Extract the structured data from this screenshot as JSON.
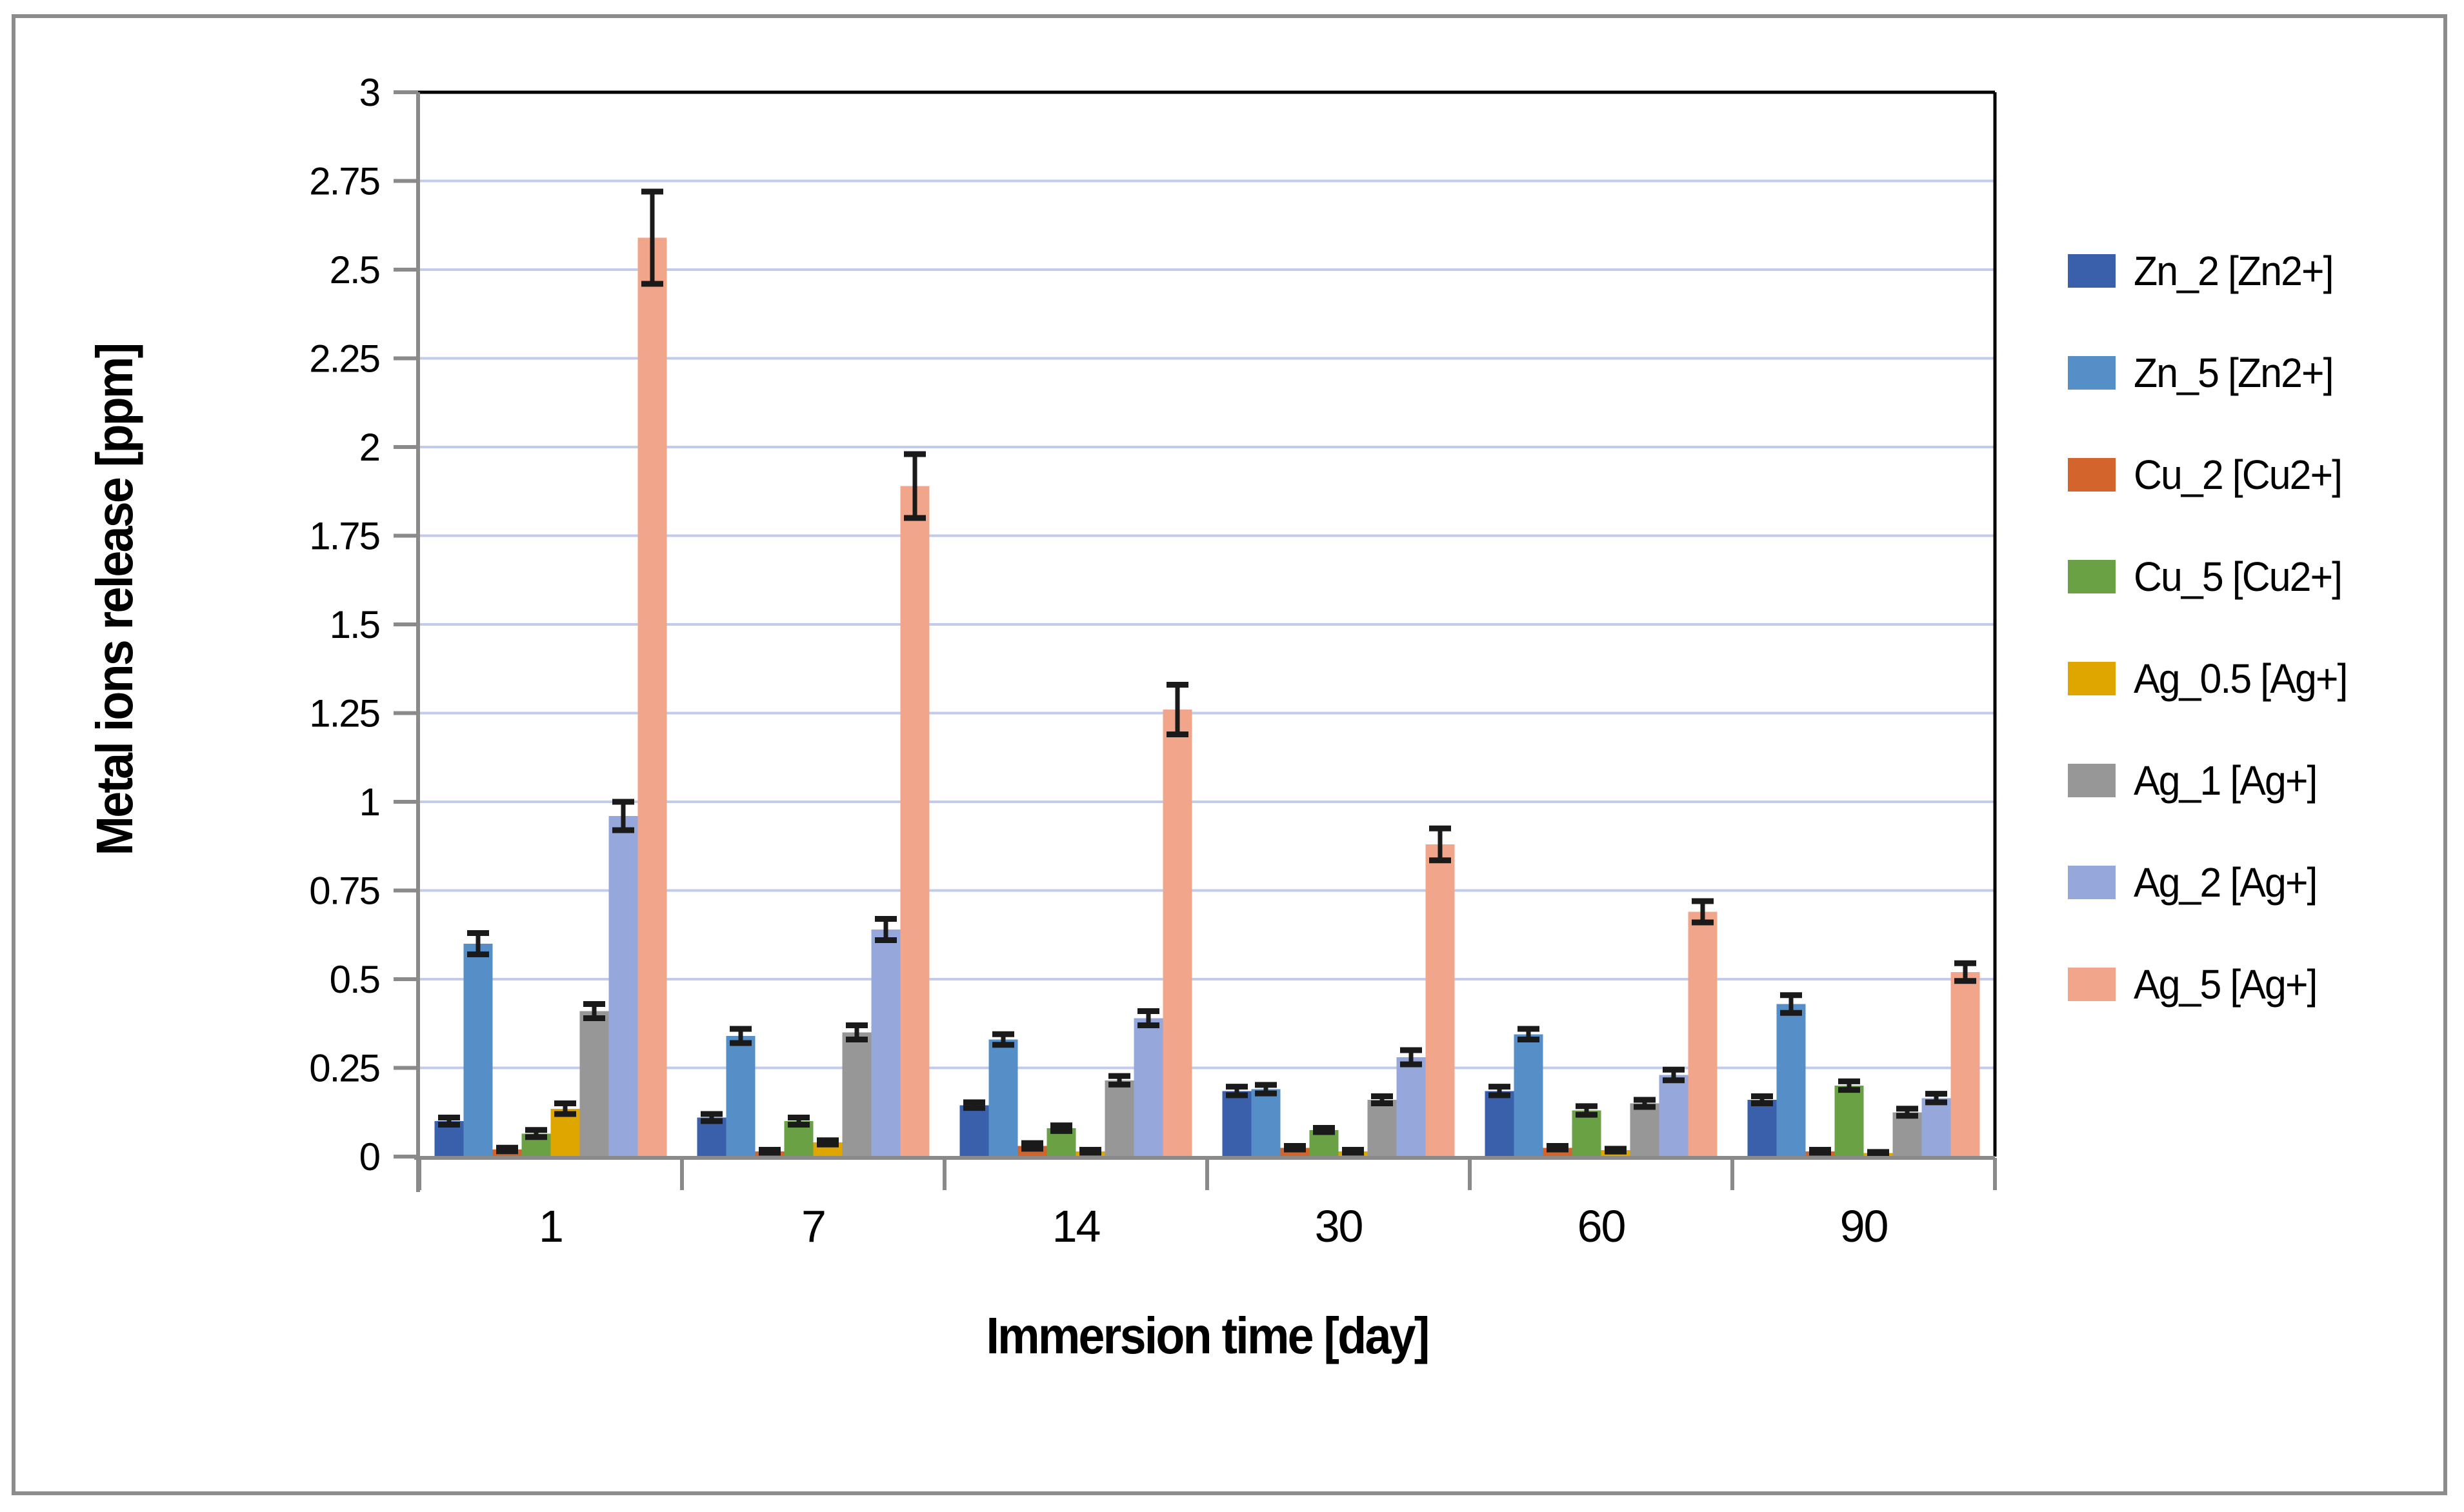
{
  "figure": {
    "y_axis_title": "Metal ions release [ppm]",
    "x_axis_title": "Immersion time [day]"
  },
  "chart_data": {
    "type": "bar",
    "title": "",
    "xlabel": "Immersion time [day]",
    "ylabel": "Metal ions release [ppm]",
    "categories": [
      "1",
      "7",
      "14",
      "30",
      "60",
      "90"
    ],
    "ylim": [
      0,
      3
    ],
    "y_tick_step": 0.25,
    "grid": "horizontal",
    "legend_position": "right",
    "error_bars": true,
    "colors": {
      "gridline": "#C2CBEC",
      "axis": "#8A8A8A",
      "plot_border": "#000000",
      "error_bar": "#1A1A1A",
      "text": "#000000"
    },
    "series": [
      {
        "name": "Zn_2 [Zn2+]",
        "color": "#3A60AC",
        "values": [
          0.1,
          0.11,
          0.145,
          0.185,
          0.185,
          0.16
        ],
        "errors": [
          0.01,
          0.01,
          0.008,
          0.012,
          0.012,
          0.01
        ]
      },
      {
        "name": "Zn_5 [Zn2+]",
        "color": "#568FC8",
        "values": [
          0.6,
          0.34,
          0.33,
          0.19,
          0.345,
          0.43
        ],
        "errors": [
          0.03,
          0.02,
          0.015,
          0.012,
          0.015,
          0.025
        ]
      },
      {
        "name": "Cu_2 [Cu2+]",
        "color": "#D2642C",
        "values": [
          0.02,
          0.015,
          0.03,
          0.025,
          0.025,
          0.015
        ],
        "errors": [
          0.005,
          0.004,
          0.008,
          0.005,
          0.005,
          0.004
        ]
      },
      {
        "name": "Cu_5 [Cu2+]",
        "color": "#69A144",
        "values": [
          0.065,
          0.1,
          0.08,
          0.075,
          0.13,
          0.2
        ],
        "errors": [
          0.01,
          0.01,
          0.008,
          0.006,
          0.012,
          0.012
        ]
      },
      {
        "name": "Ag_0.5 [Ag+]",
        "color": "#E0A600",
        "values": [
          0.135,
          0.04,
          0.015,
          0.015,
          0.018,
          0.01
        ],
        "errors": [
          0.015,
          0.006,
          0.004,
          0.004,
          0.004,
          0.003
        ]
      },
      {
        "name": "Ag_1 [Ag+]",
        "color": "#979797",
        "values": [
          0.41,
          0.35,
          0.215,
          0.16,
          0.15,
          0.125
        ],
        "errors": [
          0.02,
          0.02,
          0.012,
          0.01,
          0.01,
          0.01
        ]
      },
      {
        "name": "Ag_2 [Ag+]",
        "color": "#96A8DB",
        "values": [
          0.96,
          0.64,
          0.39,
          0.28,
          0.23,
          0.165
        ],
        "errors": [
          0.04,
          0.03,
          0.02,
          0.02,
          0.015,
          0.012
        ]
      },
      {
        "name": "Ag_5 [Ag+]",
        "color": "#F1A58B",
        "values": [
          2.59,
          1.89,
          1.26,
          0.88,
          0.69,
          0.52
        ],
        "errors": [
          0.13,
          0.09,
          0.07,
          0.045,
          0.03,
          0.025
        ]
      }
    ]
  }
}
